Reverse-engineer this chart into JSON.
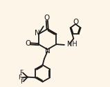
{
  "bg_color": "#fdf5e8",
  "line_color": "#1a1a1a",
  "lw": 1.3,
  "font_size": 7.0,
  "figsize": [
    1.59,
    1.26
  ],
  "dpi": 100,
  "xlim": [
    0,
    10
  ],
  "ylim": [
    0,
    8
  ]
}
